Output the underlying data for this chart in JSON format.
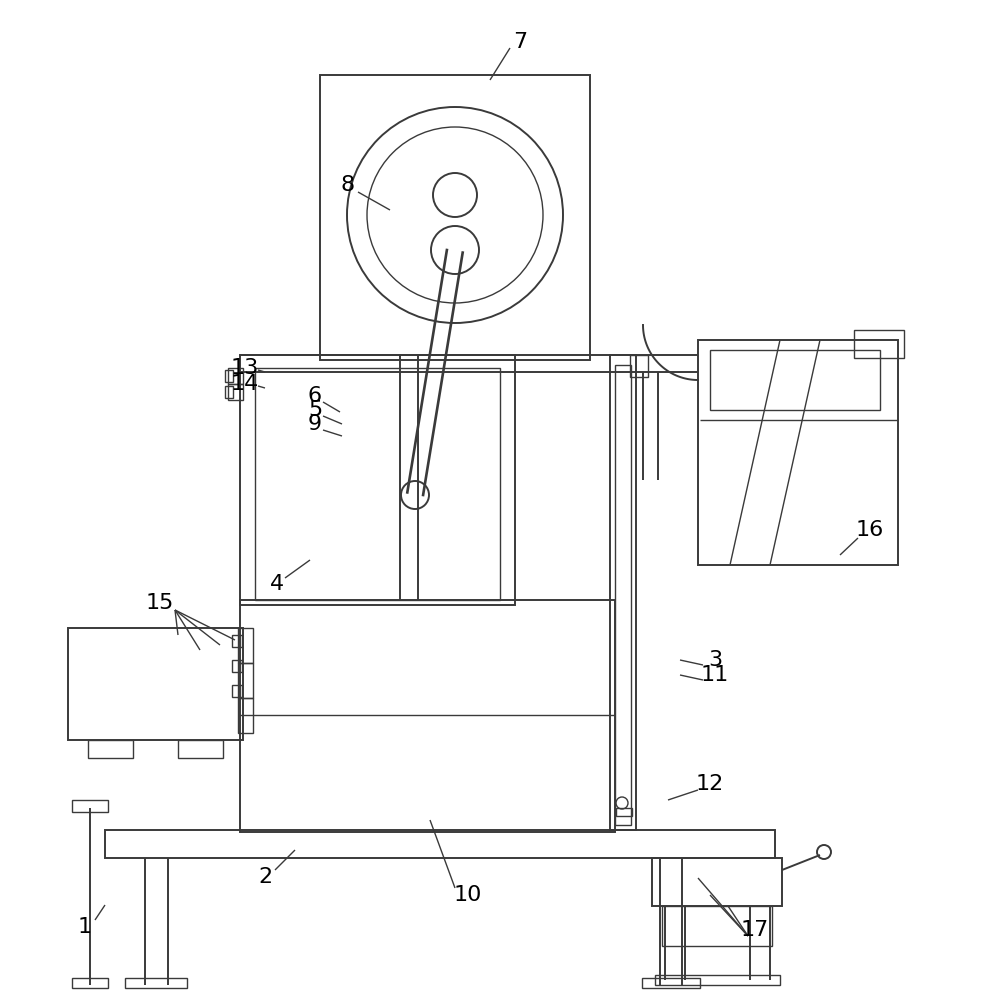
{
  "bg_color": "#ffffff",
  "lc": "#3a3a3a",
  "lw": 1.4,
  "tlw": 1.0
}
